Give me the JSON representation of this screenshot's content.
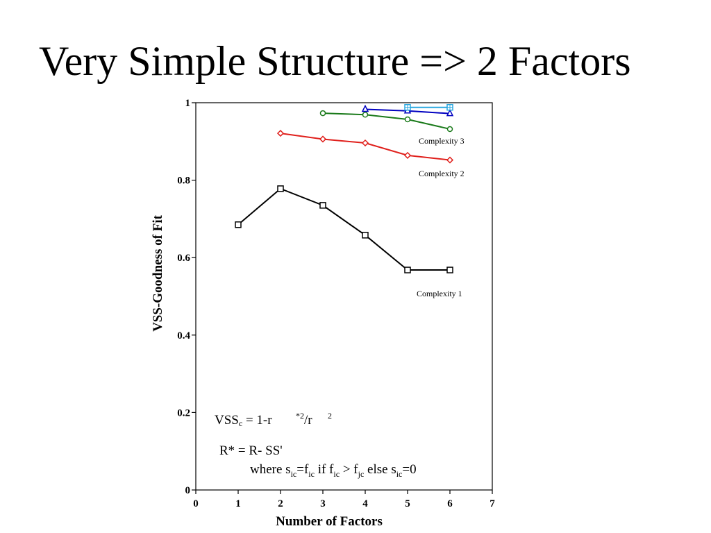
{
  "slide": {
    "title": "Very Simple Structure => 2 Factors"
  },
  "chart_data": {
    "type": "line",
    "xlabel": "Number of Factors",
    "ylabel": "VSS-Goodness of Fit",
    "xlim": [
      0,
      7
    ],
    "ylim": [
      0,
      1
    ],
    "x_ticks": [
      "0",
      "1",
      "2",
      "3",
      "4",
      "5",
      "6",
      "7"
    ],
    "y_ticks": [
      "0",
      "0.2",
      "0.4",
      "0.6",
      "0.8",
      "1"
    ],
    "grid": false,
    "series": [
      {
        "name": "Complexity 1",
        "color": "#000000",
        "marker": "square",
        "x": [
          1,
          2,
          3,
          4,
          5,
          6
        ],
        "y": [
          0.685,
          0.778,
          0.735,
          0.658,
          0.568,
          0.568
        ]
      },
      {
        "name": "Complexity 2",
        "color": "#e0201c",
        "marker": "diamond",
        "x": [
          2,
          3,
          4,
          5,
          6
        ],
        "y": [
          0.921,
          0.906,
          0.896,
          0.864,
          0.852
        ]
      },
      {
        "name": "Complexity 3",
        "color": "#1a7a1a",
        "marker": "circle",
        "x": [
          3,
          4,
          5,
          6
        ],
        "y": [
          0.973,
          0.969,
          0.957,
          0.932
        ]
      },
      {
        "name": "",
        "color": "#0000c0",
        "marker": "triangle",
        "x": [
          4,
          5,
          6
        ],
        "y": [
          0.983,
          0.979,
          0.972
        ]
      },
      {
        "name": "",
        "color": "#2aa8e0",
        "marker": "square-cross",
        "x": [
          5,
          6
        ],
        "y": [
          0.988,
          0.988
        ]
      }
    ],
    "annotations": {
      "formula1_main": "VSS",
      "formula1_sub": "c",
      "formula1_mid": " = 1-r",
      "formula1_sup1": "*2",
      "formula1_slash": "/r",
      "formula1_sup2": "2",
      "formula2": "R* = R- SS'",
      "formula3_where": "where s",
      "formula3_sub_ic": "ic",
      "formula3_eq_f": "=f",
      "formula3_if": " if f",
      "formula3_gt": " > f",
      "formula3_sub_jc": "jc",
      "formula3_else": " else s",
      "formula3_end": "=0"
    }
  }
}
